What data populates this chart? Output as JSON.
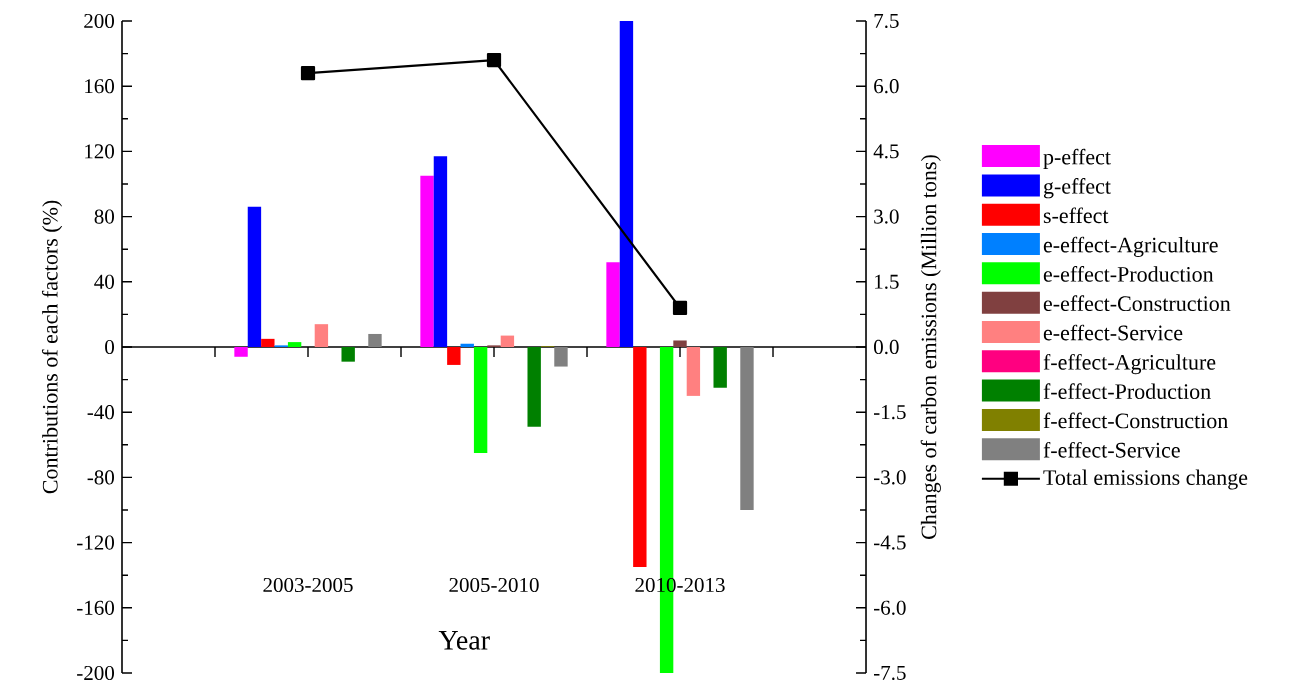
{
  "chart_data": {
    "type": "bar",
    "xlabel": "Year",
    "ylabel": "Contributions of each factors (%)",
    "y2label": "Changes of carbon emissions (Million tons)",
    "categories": [
      "2003-2005",
      "2005-2010",
      "2010-2013"
    ],
    "series": [
      {
        "name": "p-effect",
        "color": "#ff00ff",
        "values": [
          -6,
          105,
          52
        ]
      },
      {
        "name": "g-effect",
        "color": "#0000ff",
        "values": [
          86,
          117,
          200
        ]
      },
      {
        "name": "s-effect",
        "color": "#ff0000",
        "values": [
          5,
          -11,
          -135
        ]
      },
      {
        "name": "e-effect-Agriculture",
        "color": "#0080ff",
        "values": [
          1,
          2,
          0
        ]
      },
      {
        "name": "e-effect-Production",
        "color": "#00ff00",
        "values": [
          3,
          -65,
          -200
        ]
      },
      {
        "name": "e-effect-Construction",
        "color": "#804040",
        "values": [
          0,
          1,
          4
        ]
      },
      {
        "name": "e-effect-Service",
        "color": "#ff8080",
        "values": [
          14,
          7,
          -30
        ]
      },
      {
        "name": "f-effect-Agriculture",
        "color": "#ff0080",
        "values": [
          0,
          0,
          0
        ]
      },
      {
        "name": "f-effect-Production",
        "color": "#008000",
        "values": [
          -9,
          -49,
          -25
        ]
      },
      {
        "name": "f-effect-Construction",
        "color": "#808000",
        "values": [
          0,
          0.5,
          0
        ]
      },
      {
        "name": "f-effect-Service",
        "color": "#808080",
        "values": [
          8,
          -12,
          -100
        ]
      },
      {
        "name": "Total emissions change",
        "type": "line",
        "axis": "y2",
        "color": "#000000",
        "marker": "square",
        "values": [
          6.3,
          6.6,
          0.9
        ]
      }
    ],
    "ylim": [
      -200,
      200
    ],
    "yticks": [
      -200,
      -160,
      -120,
      -80,
      -40,
      0,
      40,
      80,
      120,
      160,
      200
    ],
    "y2lim": [
      -7.5,
      7.5
    ],
    "y2ticks": [
      {
        "value": -7.5,
        "label": "-7.5"
      },
      {
        "value": -6,
        "label": "-6.0"
      },
      {
        "value": -4.5,
        "label": "-4.5"
      },
      {
        "value": -3,
        "label": "-3.0"
      },
      {
        "value": -1.5,
        "label": "-1.5"
      },
      {
        "value": 0,
        "label": "0.0"
      },
      {
        "value": 1.5,
        "label": "1.5"
      },
      {
        "value": 3,
        "label": "3.0"
      },
      {
        "value": 4.5,
        "label": "4.5"
      },
      {
        "value": 6,
        "label": "6.0"
      },
      {
        "value": 7.5,
        "label": "7.5"
      }
    ],
    "legend": "right"
  }
}
